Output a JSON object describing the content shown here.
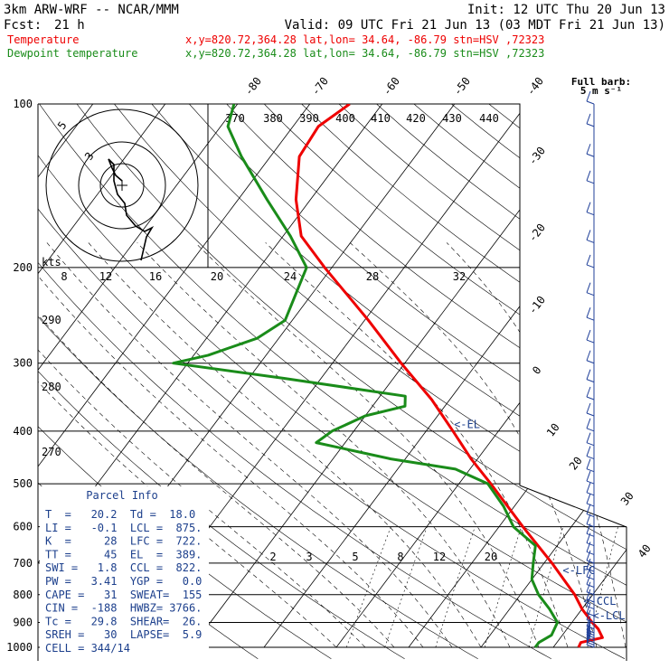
{
  "header": {
    "model": "3km ARW-WRF -- NCAR/MMM",
    "init": "Init: 12 UTC Thu 20 Jun 13",
    "fcst_label": "Fcst:",
    "fcst_value": "21 h",
    "valid": "Valid: 09 UTC Fri 21 Jun 13 (03 MDT Fri 21 Jun 13)",
    "temp_line": {
      "name": "Temperature",
      "info": "x,y=820.72,364.28   lat,lon= 34.64, -86.79   stn=HSV ,72323"
    },
    "dew_line": {
      "name": "Dewpoint temperature",
      "info": "x,y=820.72,364.28   lat,lon= 34.64, -86.79   stn=HSV ,72323"
    },
    "barb_title": "Full barb:",
    "barb_units": "5 m s⁻¹"
  },
  "colors": {
    "temperature": "#ee0000",
    "dewpoint": "#1a8c1a",
    "header_red": "#ee0000",
    "header_green": "#1a8c1a",
    "parcel_text": "#1c3f8c",
    "wind": "#1f3f99",
    "grid": "#000000"
  },
  "chart_data": {
    "type": "line",
    "y_axis": {
      "scale": "log",
      "label": "",
      "ylim": [
        1000,
        100
      ],
      "ticks": [
        100,
        200,
        300,
        400,
        500,
        600,
        700,
        800,
        900,
        1000
      ]
    },
    "isotherm_labels": [
      "-80",
      "-70",
      "-60",
      "-50",
      "-40",
      "-30",
      "-20",
      "-10",
      "0",
      "10",
      "20",
      "30",
      "40"
    ],
    "theta_labels": [
      "370",
      "380",
      "390",
      "400",
      "410",
      "420",
      "430",
      "440"
    ],
    "theta_left_labels": [
      "290",
      "280",
      "270"
    ],
    "mixing_ratio_labels": [
      "2",
      "3",
      "5",
      "8",
      "12",
      "20"
    ],
    "hodograph": {
      "ring_labels": [
        "5",
        "3"
      ],
      "kts_label": "kts",
      "speed_ticks": [
        "8",
        "12",
        "16",
        "20",
        "24",
        "28",
        "32"
      ]
    },
    "series": [
      {
        "name": "Temperature",
        "points": [
          [
            1000,
            23.5
          ],
          [
            980,
            23.3
          ],
          [
            960,
            25.8
          ],
          [
            925,
            24.3
          ],
          [
            900,
            22.8
          ],
          [
            850,
            20.0
          ],
          [
            800,
            17.5
          ],
          [
            750,
            14.4
          ],
          [
            700,
            11.1
          ],
          [
            600,
            3.3
          ],
          [
            500,
            -5.6
          ],
          [
            450,
            -10.9
          ],
          [
            400,
            -16.3
          ],
          [
            350,
            -22.5
          ],
          [
            300,
            -30.5
          ],
          [
            250,
            -39.5
          ],
          [
            200,
            -51.0
          ],
          [
            175,
            -57.5
          ],
          [
            150,
            -62.0
          ],
          [
            125,
            -66.0
          ],
          [
            110,
            -66.5
          ],
          [
            100,
            -64.5
          ]
        ]
      },
      {
        "name": "Dewpoint temperature",
        "points": [
          [
            1000,
            17.5
          ],
          [
            980,
            17.5
          ],
          [
            950,
            18.5
          ],
          [
            900,
            18.0
          ],
          [
            850,
            15.5
          ],
          [
            800,
            12.5
          ],
          [
            750,
            10.0
          ],
          [
            700,
            8.5
          ],
          [
            650,
            7.0
          ],
          [
            600,
            2.0
          ],
          [
            550,
            -1.5
          ],
          [
            500,
            -6.0
          ],
          [
            470,
            -12.0
          ],
          [
            450,
            -22.0
          ],
          [
            420,
            -34.0
          ],
          [
            400,
            -33.0
          ],
          [
            375,
            -30.0
          ],
          [
            360,
            -25.5
          ],
          [
            345,
            -26.5
          ],
          [
            320,
            -45.0
          ],
          [
            300,
            -62.0
          ],
          [
            290,
            -58.0
          ],
          [
            270,
            -53.0
          ],
          [
            250,
            -51.0
          ],
          [
            200,
            -53.5
          ],
          [
            175,
            -59.0
          ],
          [
            150,
            -66.0
          ],
          [
            125,
            -74.0
          ],
          [
            110,
            -79.0
          ],
          [
            100,
            -80.5
          ]
        ]
      }
    ],
    "markers": [
      {
        "label": "<-EL",
        "pressure": 389
      },
      {
        "label": "<-LFC",
        "pressure": 722
      },
      {
        "label": "<-CCL",
        "pressure": 822
      },
      {
        "label": "<-LCL",
        "pressure": 875
      }
    ],
    "wind_barbs_pressures": [
      1000,
      990,
      980,
      970,
      960,
      950,
      940,
      925,
      900,
      875,
      850,
      825,
      800,
      775,
      750,
      725,
      700,
      675,
      650,
      625,
      600,
      575,
      550,
      525,
      500,
      475,
      450,
      425,
      400,
      375,
      350,
      325,
      300,
      275,
      250,
      225,
      200,
      180,
      160,
      140,
      125,
      110,
      100
    ]
  },
  "parcel": {
    "title": "Parcel Info",
    "rows": [
      "T  =   20.2  Td =  18.0",
      "LI =   -0.1  LCL =  875.",
      "K  =     28  LFC =  722.",
      "TT =     45  EL  =  389.",
      "SWI =   1.8  CCL =  822.",
      "PW =   3.41  YGP =   0.0",
      "CAPE =   31  SWEAT=  155",
      "CIN =  -188  HWBZ= 3766.",
      "Tc =   29.8  SHEAR=  26.",
      "SREH =   30  LAPSE=  5.9",
      "CELL = 344/14"
    ]
  }
}
